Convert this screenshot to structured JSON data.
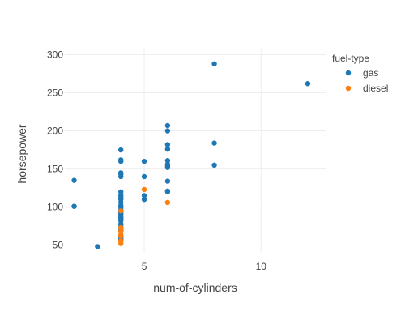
{
  "chart_data": {
    "type": "scatter",
    "title": "",
    "xlabel": "num-of-cylinders",
    "ylabel": "horsepower",
    "xlim": [
      1.6,
      12.8
    ],
    "ylim": [
      40,
      308
    ],
    "x_ticks": [
      5,
      10
    ],
    "y_ticks": [
      50,
      100,
      150,
      200,
      250,
      300
    ],
    "grid": true,
    "legend": {
      "title": "fuel-type",
      "placement": "top-right"
    },
    "series": [
      {
        "name": "gas",
        "color": "#1f77b4",
        "points": [
          [
            2,
            135
          ],
          [
            2,
            101
          ],
          [
            2,
            101
          ],
          [
            3,
            48
          ],
          [
            4,
            175
          ],
          [
            4,
            162
          ],
          [
            4,
            160
          ],
          [
            4,
            145
          ],
          [
            4,
            143
          ],
          [
            4,
            140
          ],
          [
            4,
            120
          ],
          [
            4,
            116
          ],
          [
            4,
            114
          ],
          [
            4,
            112
          ],
          [
            4,
            110
          ],
          [
            4,
            106
          ],
          [
            4,
            102
          ],
          [
            4,
            101
          ],
          [
            4,
            100
          ],
          [
            4,
            97
          ],
          [
            4,
            95
          ],
          [
            4,
            94
          ],
          [
            4,
            92
          ],
          [
            4,
            90
          ],
          [
            4,
            88
          ],
          [
            4,
            86
          ],
          [
            4,
            85
          ],
          [
            4,
            84
          ],
          [
            4,
            82
          ],
          [
            4,
            78
          ],
          [
            4,
            76
          ],
          [
            4,
            73
          ],
          [
            4,
            70
          ],
          [
            4,
            69
          ],
          [
            4,
            68
          ],
          [
            4,
            62
          ],
          [
            4,
            60
          ],
          [
            4,
            58
          ],
          [
            4,
            56
          ],
          [
            5,
            160
          ],
          [
            5,
            140
          ],
          [
            5,
            115
          ],
          [
            5,
            110
          ],
          [
            6,
            207
          ],
          [
            6,
            200
          ],
          [
            6,
            182
          ],
          [
            6,
            176
          ],
          [
            6,
            161
          ],
          [
            6,
            156
          ],
          [
            6,
            154
          ],
          [
            6,
            152
          ],
          [
            6,
            134
          ],
          [
            6,
            121
          ],
          [
            6,
            120
          ],
          [
            8,
            288
          ],
          [
            8,
            184
          ],
          [
            8,
            155
          ],
          [
            12,
            262
          ]
        ]
      },
      {
        "name": "diesel",
        "color": "#ff7f0e",
        "points": [
          [
            4,
            95
          ],
          [
            4,
            73
          ],
          [
            4,
            72
          ],
          [
            4,
            68
          ],
          [
            4,
            64
          ],
          [
            4,
            62
          ],
          [
            4,
            56
          ],
          [
            4,
            55
          ],
          [
            4,
            52
          ],
          [
            5,
            123
          ],
          [
            6,
            106
          ]
        ]
      }
    ]
  }
}
